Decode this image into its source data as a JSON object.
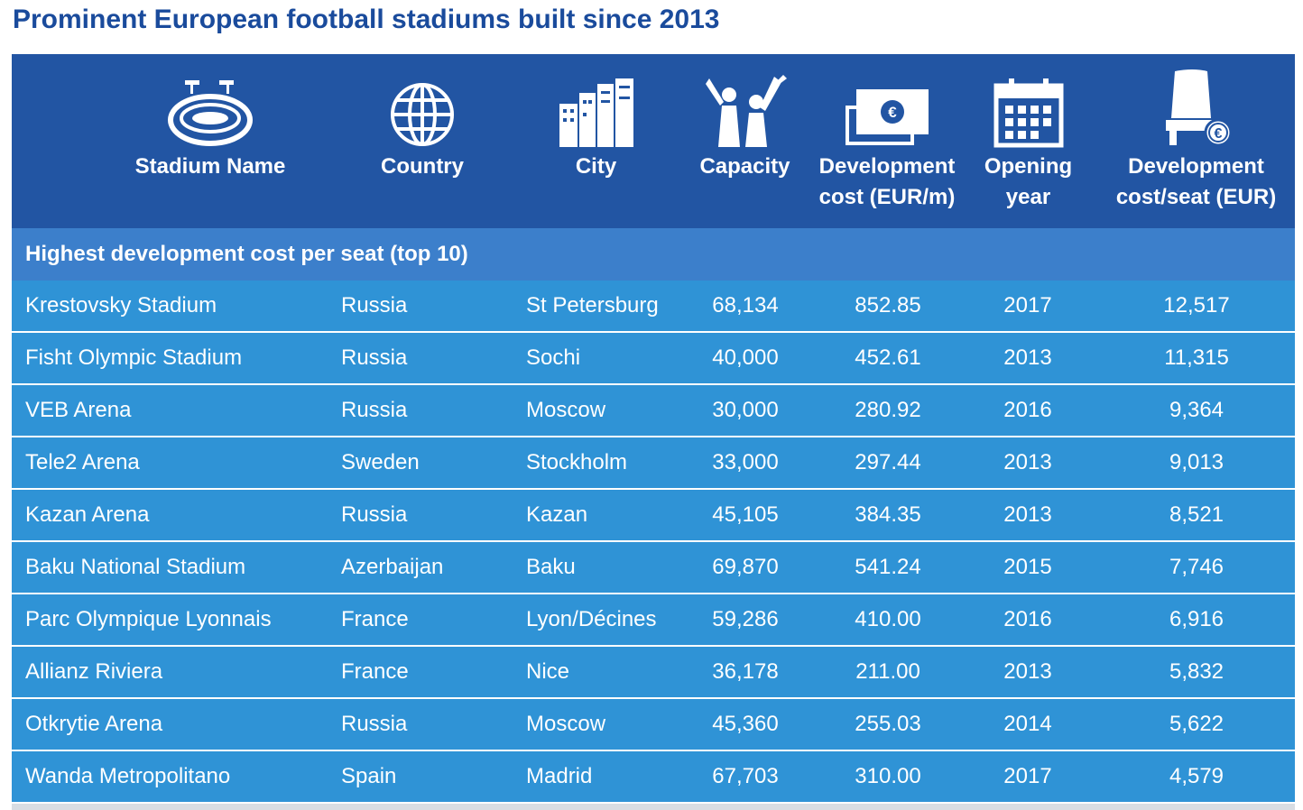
{
  "title": "Prominent European football stadiums built since 2013",
  "columns": [
    {
      "icon": "stadium-icon",
      "label": [
        "Stadium Name"
      ]
    },
    {
      "icon": "globe-icon",
      "label": [
        "Country"
      ]
    },
    {
      "icon": "city-buildings-icon",
      "label": [
        "City"
      ]
    },
    {
      "icon": "cheering-fans-icon",
      "label": [
        "Capacity"
      ]
    },
    {
      "icon": "euro-banknotes-icon",
      "label": [
        "Development",
        "cost (EUR/m)"
      ]
    },
    {
      "icon": "calendar-icon",
      "label": [
        "Opening",
        "year"
      ]
    },
    {
      "icon": "seat-euro-icon",
      "label": [
        "Development",
        "cost/seat (EUR)"
      ]
    }
  ],
  "section_label": "Highest development cost per seat (top 10)",
  "colors": {
    "header": "#2255a3",
    "section": "#3c7fcb",
    "row": "#2f93d6",
    "title": "#1a4b9c"
  },
  "chart_data": {
    "type": "table",
    "title": "Prominent European football stadiums built since 2013",
    "headers": [
      "Stadium Name",
      "Country",
      "City",
      "Capacity",
      "Development cost (EUR/m)",
      "Opening year",
      "Development cost/seat (EUR)"
    ],
    "rows": [
      [
        "Krestovsky Stadium",
        "Russia",
        "St Petersburg",
        "68,134",
        "852.85",
        "2017",
        "12,517"
      ],
      [
        "Fisht Olympic Stadium",
        "Russia",
        "Sochi",
        "40,000",
        "452.61",
        "2013",
        "11,315"
      ],
      [
        "VEB Arena",
        "Russia",
        "Moscow",
        "30,000",
        "280.92",
        "2016",
        "9,364"
      ],
      [
        "Tele2 Arena",
        "Sweden",
        "Stockholm",
        "33,000",
        "297.44",
        "2013",
        "9,013"
      ],
      [
        "Kazan Arena",
        "Russia",
        "Kazan",
        "45,105",
        "384.35",
        "2013",
        "8,521"
      ],
      [
        "Baku National Stadium",
        "Azerbaijan",
        "Baku",
        "69,870",
        "541.24",
        "2015",
        "7,746"
      ],
      [
        "Parc Olympique Lyonnais",
        "France",
        "Lyon/Décines",
        "59,286",
        "410.00",
        "2016",
        "6,916"
      ],
      [
        "Allianz Riviera",
        "France",
        "Nice",
        "36,178",
        "211.00",
        "2013",
        "5,832"
      ],
      [
        "Otkrytie Arena",
        "Russia",
        "Moscow",
        "45,360",
        "255.03",
        "2014",
        "5,622"
      ],
      [
        "Wanda Metropolitano",
        "Spain",
        "Madrid",
        "67,703",
        "310.00",
        "2017",
        "4,579"
      ]
    ]
  }
}
